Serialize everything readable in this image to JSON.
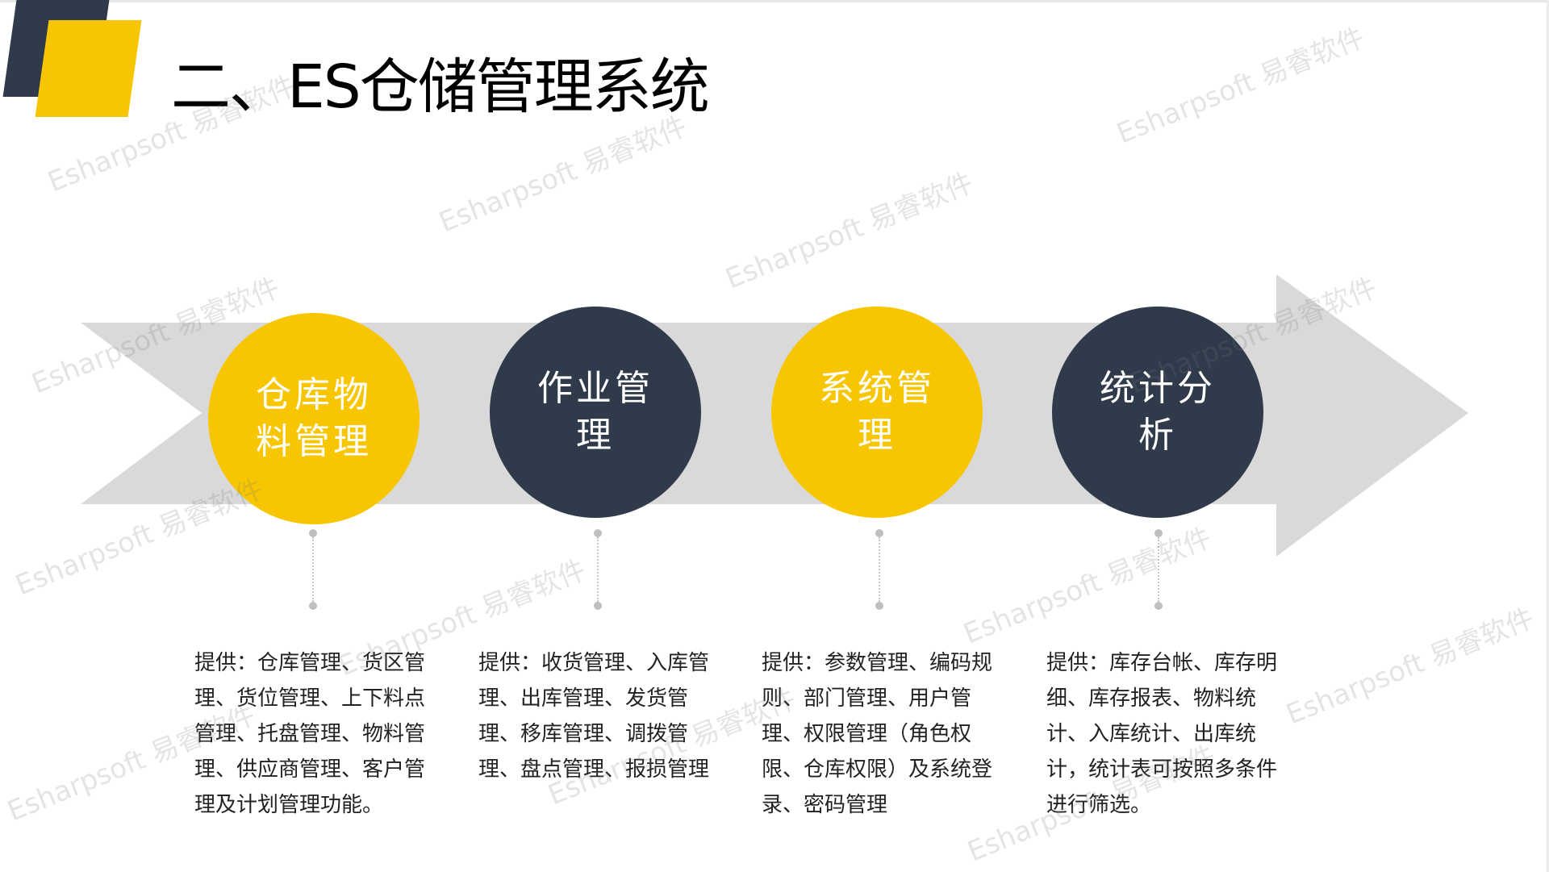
{
  "title": "二、ES仓储管理系统",
  "watermark": "Esharpsoft 易睿软件",
  "colors": {
    "yellow": "#f7c600",
    "dark": "#2f3a4b",
    "arrow": "#d9d9d9"
  },
  "steps": [
    {
      "label": "仓库物料管理",
      "desc": "提供：仓库管理、货区管理、货位管理、上下料点管理、托盘管理、物料管理、供应商管理、客户管理及计划管理功能。"
    },
    {
      "label": "作业管理",
      "desc": "提供：收货管理、入库管理、出库管理、发货管理、移库管理、调拨管理、盘点管理、报损管理"
    },
    {
      "label": "系统管理",
      "desc": "提供：参数管理、编码规则、部门管理、用户管理、权限管理（角色权限、仓库权限）及系统登录、密码管理"
    },
    {
      "label": "统计分析",
      "desc": "提供：库存台帐、库存明细、库存报表、物料统计、入库统计、出库统计，统计表可按照多条件进行筛选。"
    }
  ]
}
